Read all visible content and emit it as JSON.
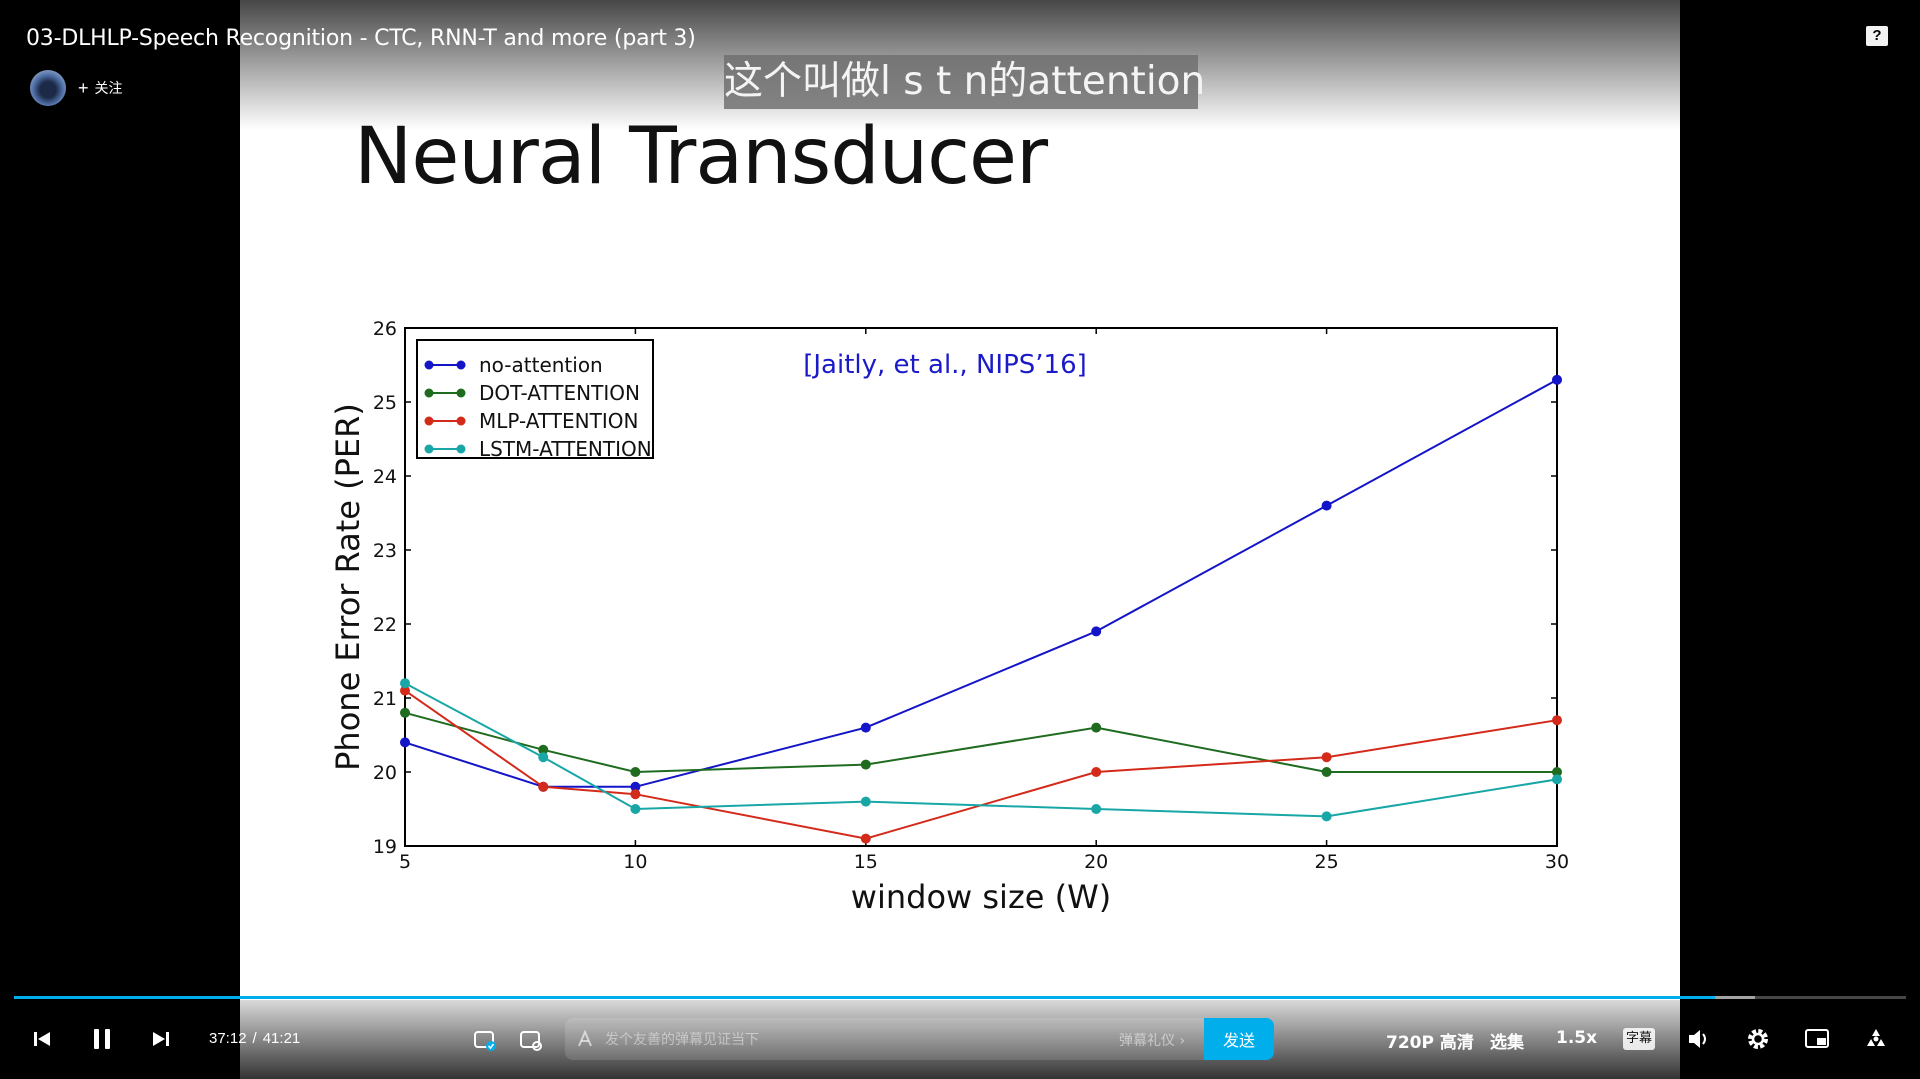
{
  "player": {
    "video_title": "03-DLHLP-Speech Recognition - CTC, RNN-T and more (part 3)",
    "follow_label": "关注",
    "help_label": "?",
    "subtitle_text": "这个叫做l s t n的attention",
    "progress_fraction": 0.899,
    "buffer_fraction": 0.92,
    "accent_color": "#00aeec"
  },
  "slide": {
    "title": "Neural Transducer"
  },
  "chart_data": {
    "type": "line",
    "title": "",
    "annotation": "[Jaitly, et al., NIPS’16]",
    "xlabel": "window size (W)",
    "ylabel": "Phone Error Rate (PER)",
    "xlim": [
      5,
      30
    ],
    "ylim": [
      19,
      26
    ],
    "xticks": [
      "5",
      "10",
      "15",
      "20",
      "25",
      "30"
    ],
    "yticks": [
      "19",
      "20",
      "21",
      "22",
      "23",
      "24",
      "25",
      "26"
    ],
    "grid": false,
    "legend_position": "top-left",
    "series": [
      {
        "name": "no-attention",
        "color": "#1414c8",
        "points": [
          [
            5,
            20.4
          ],
          [
            8,
            19.8
          ],
          [
            10,
            19.8
          ],
          [
            15,
            20.6
          ],
          [
            20,
            21.9
          ],
          [
            25,
            23.6
          ],
          [
            30,
            25.3
          ]
        ]
      },
      {
        "name": "DOT-ATTENTION",
        "color": "#1f6b1f",
        "points": [
          [
            5,
            20.8
          ],
          [
            8,
            20.3
          ],
          [
            10,
            20.0
          ],
          [
            15,
            20.1
          ],
          [
            20,
            20.6
          ],
          [
            25,
            20.0
          ],
          [
            30,
            20.0
          ]
        ]
      },
      {
        "name": "MLP-ATTENTION",
        "color": "#d42a1a",
        "points": [
          [
            5,
            21.1
          ],
          [
            8,
            19.8
          ],
          [
            10,
            19.7
          ],
          [
            15,
            19.1
          ],
          [
            20,
            20.0
          ],
          [
            25,
            20.2
          ],
          [
            30,
            20.7
          ]
        ]
      },
      {
        "name": "LSTM-ATTENTION",
        "color": "#18a6a6",
        "points": [
          [
            5,
            21.2
          ],
          [
            8,
            20.2
          ],
          [
            10,
            19.5
          ],
          [
            15,
            19.6
          ],
          [
            20,
            19.5
          ],
          [
            25,
            19.4
          ],
          [
            30,
            19.9
          ]
        ]
      }
    ]
  },
  "controls": {
    "time_current": "37:12",
    "time_separator": "/",
    "time_total": "41:21",
    "danmaku_placeholder": "发个友善的弹幕见证当下",
    "danmaku_etiquette": "弹幕礼仪 ›",
    "send_label": "发送",
    "quality_label": "720P 高清",
    "episodes_label": "选集",
    "speed_label": "1.5x",
    "subtitle_toggle_label": "字幕"
  }
}
